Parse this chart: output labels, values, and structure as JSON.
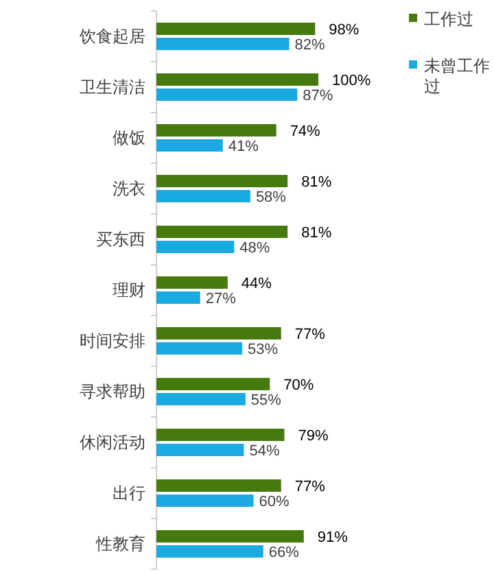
{
  "chart_data": {
    "type": "bar",
    "orientation": "horizontal",
    "legend": "top right",
    "categories": [
      "饮食起居",
      "卫生清洁",
      "做饭",
      "洗衣",
      "买东西",
      "理财",
      "时间安排",
      "寻求帮助",
      "休闲活动",
      "出行",
      "性教育"
    ],
    "series": [
      {
        "name": "工作过",
        "color": "#467a0f",
        "values": [
          98,
          100,
          74,
          81,
          81,
          44,
          77,
          70,
          79,
          77,
          91
        ],
        "value_labels": [
          "98%",
          "100%",
          "74%",
          "81%",
          "81%",
          "44%",
          "77%",
          "70%",
          "79%",
          "77%",
          "91%"
        ]
      },
      {
        "name": "未曾工作过",
        "color": "#1aa9e0",
        "values": [
          82,
          87,
          41,
          58,
          48,
          27,
          53,
          55,
          54,
          60,
          66
        ],
        "value_labels": [
          "82%",
          "87%",
          "41%",
          "58%",
          "48%",
          "27%",
          "53%",
          "55%",
          "54%",
          "60%",
          "66%"
        ]
      }
    ]
  }
}
